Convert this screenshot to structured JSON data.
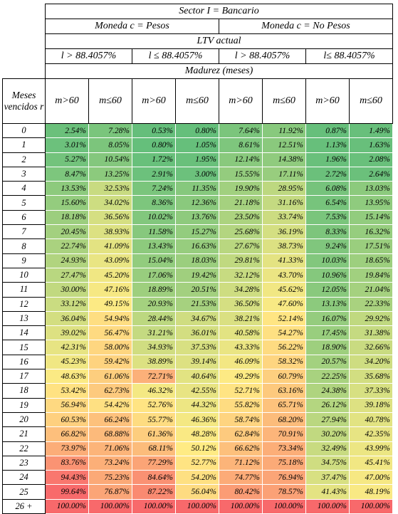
{
  "header": {
    "sector": "Sector I = Bancario",
    "currency_groups": [
      "Moneda c = Pesos",
      "Moneda c = No Pesos"
    ],
    "ltv_title": "LTV actual",
    "ltv_groups": [
      "l > 88.4057%",
      "l ≤ 88.4057%",
      "l > 88.4057%",
      "l≤ 88.4057%"
    ],
    "maturity_title": "Madurez (meses)",
    "row_header": "Meses vencidos r",
    "columns": [
      "m>60",
      "m≤60",
      "m>60",
      "m≤60",
      "m>60",
      "m≤60",
      "m>60",
      "m≤60"
    ]
  },
  "rows": [
    {
      "label": "0",
      "values": [
        "2.54%",
        "7.28%",
        "0.53%",
        "0.80%",
        "7.64%",
        "11.92%",
        "0.87%",
        "1.49%"
      ]
    },
    {
      "label": "1",
      "values": [
        "3.01%",
        "8.05%",
        "0.80%",
        "1.05%",
        "8.61%",
        "12.51%",
        "1.13%",
        "1.63%"
      ]
    },
    {
      "label": "2",
      "values": [
        "5.27%",
        "10.54%",
        "1.72%",
        "1.95%",
        "12.14%",
        "14.38%",
        "1.96%",
        "2.08%"
      ]
    },
    {
      "label": "3",
      "values": [
        "8.47%",
        "13.25%",
        "2.91%",
        "3.00%",
        "15.55%",
        "17.11%",
        "2.72%",
        "2.64%"
      ]
    },
    {
      "label": "4",
      "values": [
        "13.53%",
        "32.53%",
        "7.24%",
        "11.35%",
        "19.90%",
        "28.95%",
        "6.08%",
        "13.03%"
      ]
    },
    {
      "label": "5",
      "values": [
        "15.60%",
        "34.02%",
        "8.36%",
        "12.36%",
        "21.18%",
        "31.16%",
        "6.54%",
        "13.95%"
      ]
    },
    {
      "label": "6",
      "values": [
        "18.18%",
        "36.56%",
        "10.02%",
        "13.76%",
        "23.50%",
        "33.74%",
        "7.53%",
        "15.14%"
      ]
    },
    {
      "label": "7",
      "values": [
        "20.45%",
        "38.93%",
        "11.58%",
        "15.27%",
        "25.68%",
        "36.19%",
        "8.33%",
        "16.32%"
      ]
    },
    {
      "label": "8",
      "values": [
        "22.74%",
        "41.09%",
        "13.43%",
        "16.63%",
        "27.67%",
        "38.73%",
        "9.24%",
        "17.51%"
      ]
    },
    {
      "label": "9",
      "values": [
        "24.93%",
        "43.09%",
        "15.04%",
        "18.03%",
        "29.81%",
        "41.33%",
        "10.03%",
        "18.65%"
      ]
    },
    {
      "label": "10",
      "values": [
        "27.47%",
        "45.20%",
        "17.06%",
        "19.42%",
        "32.12%",
        "43.70%",
        "10.96%",
        "19.84%"
      ]
    },
    {
      "label": "11",
      "values": [
        "30.00%",
        "47.16%",
        "18.89%",
        "20.51%",
        "34.28%",
        "45.62%",
        "12.05%",
        "21.04%"
      ]
    },
    {
      "label": "12",
      "values": [
        "33.12%",
        "49.15%",
        "20.93%",
        "21.53%",
        "36.50%",
        "47.60%",
        "13.13%",
        "22.33%"
      ]
    },
    {
      "label": "13",
      "values": [
        "36.04%",
        "54.94%",
        "28.44%",
        "34.67%",
        "38.21%",
        "52.14%",
        "16.07%",
        "29.92%"
      ]
    },
    {
      "label": "14",
      "values": [
        "39.02%",
        "56.47%",
        "31.21%",
        "36.01%",
        "40.58%",
        "54.27%",
        "17.45%",
        "31.38%"
      ]
    },
    {
      "label": "15",
      "values": [
        "42.31%",
        "58.00%",
        "34.93%",
        "37.53%",
        "43.33%",
        "56.22%",
        "18.90%",
        "32.66%"
      ]
    },
    {
      "label": "16",
      "values": [
        "45.23%",
        "59.42%",
        "38.89%",
        "39.14%",
        "46.09%",
        "58.32%",
        "20.57%",
        "34.20%"
      ]
    },
    {
      "label": "17",
      "values": [
        "48.63%",
        "61.06%",
        "72.71%",
        "40.64%",
        "49.29%",
        "60.79%",
        "22.25%",
        "35.68%"
      ]
    },
    {
      "label": "18",
      "values": [
        "53.42%",
        "62.73%",
        "46.32%",
        "42.55%",
        "52.71%",
        "63.16%",
        "24.38%",
        "37.33%"
      ]
    },
    {
      "label": "19",
      "values": [
        "56.94%",
        "54.42%",
        "52.76%",
        "44.32%",
        "55.82%",
        "65.71%",
        "26.12%",
        "39.18%"
      ]
    },
    {
      "label": "20",
      "values": [
        "60.53%",
        "66.24%",
        "55.77%",
        "46.36%",
        "58.74%",
        "68.20%",
        "27.94%",
        "40.78%"
      ]
    },
    {
      "label": "21",
      "values": [
        "66.82%",
        "68.88%",
        "61.36%",
        "48.28%",
        "62.84%",
        "70.91%",
        "30.20%",
        "42.35%"
      ]
    },
    {
      "label": "22",
      "values": [
        "73.97%",
        "71.06%",
        "68.11%",
        "50.12%",
        "66.62%",
        "73.34%",
        "32.49%",
        "43.99%"
      ]
    },
    {
      "label": "23",
      "values": [
        "83.76%",
        "73.24%",
        "77.29%",
        "52.77%",
        "71.12%",
        "75.18%",
        "34.75%",
        "45.41%"
      ]
    },
    {
      "label": "24",
      "values": [
        "94.43%",
        "75.23%",
        "84.64%",
        "54.20%",
        "74.77%",
        "76.94%",
        "37.47%",
        "47.00%"
      ]
    },
    {
      "label": "25",
      "values": [
        "99.64%",
        "76.87%",
        "87.22%",
        "56.04%",
        "80.42%",
        "78.57%",
        "41.43%",
        "48.19%"
      ]
    },
    {
      "label": "26 +",
      "values": [
        "100.00%",
        "100.00%",
        "100.00%",
        "100.00%",
        "100.00%",
        "100.00%",
        "100.00%",
        "100.00%"
      ]
    }
  ],
  "color_scale": {
    "low": "#63be7b",
    "mid": "#ffeb84",
    "high": "#f8696b"
  }
}
